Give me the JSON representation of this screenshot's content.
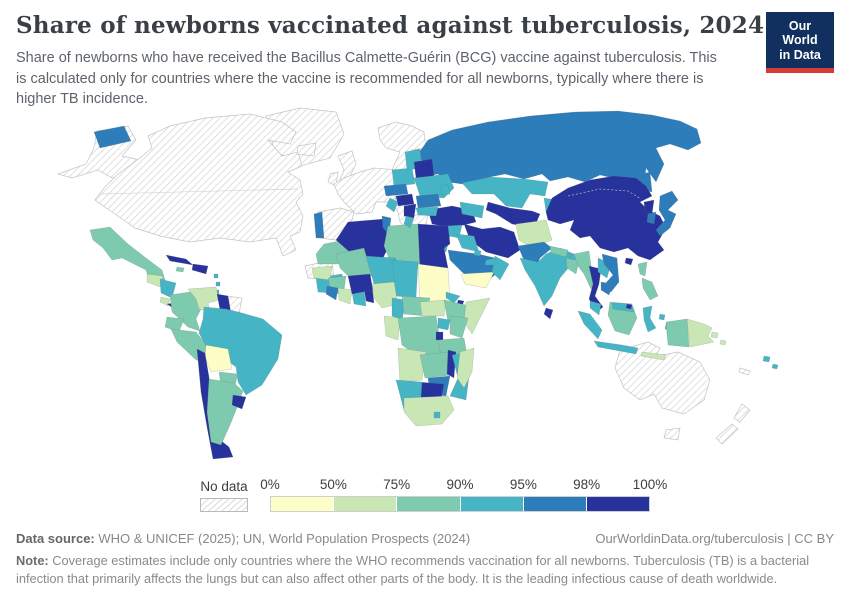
{
  "header": {
    "title": "Share of newborns vaccinated against tuberculosis, 2024",
    "subtitle": "Share of newborns who have received the Bacillus Calmette-Guérin (BCG) vaccine against tuberculosis. This is calculated only for countries where the vaccine is recommended for all newborns, typically where there is higher TB incidence.",
    "logo": {
      "line1": "Our World",
      "line2": "in Data",
      "bg_color": "#12305f",
      "accent_color": "#d63b36"
    }
  },
  "legend": {
    "no_data_label": "No data",
    "tick_labels": [
      "0%",
      "50%",
      "75%",
      "90%",
      "95%",
      "98%",
      "100%"
    ],
    "bin_ranges": [
      "0-50%",
      "50-75%",
      "75-90%",
      "90-95%",
      "95-98%",
      "98-100%"
    ],
    "bin_colors": [
      "#fdfdc7",
      "#c9e7b4",
      "#7dcaae",
      "#45b4c5",
      "#2d7dbb",
      "#28329c"
    ]
  },
  "map": {
    "ocean_color": "#ffffff",
    "no_data_pattern": "diagonal-hatch",
    "regions": [
      {
        "id": "greenland",
        "bin": "no-data"
      },
      {
        "id": "alaska",
        "bin": "no-data"
      },
      {
        "id": "canada-usa",
        "bin": "no-data"
      },
      {
        "id": "iceland",
        "bin": "no-data"
      },
      {
        "id": "uk-ireland",
        "bin": "no-data"
      },
      {
        "id": "scandinavia",
        "bin": "no-data"
      },
      {
        "id": "denmark",
        "bin": "no-data"
      },
      {
        "id": "western-europe",
        "bin": "no-data"
      },
      {
        "id": "spain",
        "bin": "no-data"
      },
      {
        "id": "italy",
        "bin": "no-data"
      },
      {
        "id": "greece",
        "bin": "no-data"
      },
      {
        "id": "western-sahara",
        "bin": "no-data"
      },
      {
        "id": "suriname-fr-guiana",
        "bin": "no-data"
      },
      {
        "id": "australia",
        "bin": "no-data"
      },
      {
        "id": "tasmania",
        "bin": "no-data"
      },
      {
        "id": "new-zealand",
        "bin": "no-data"
      },
      {
        "id": "new-caledonia",
        "bin": "no-data"
      },
      {
        "id": "russia",
        "bin": 4
      },
      {
        "id": "chukotka-russia",
        "bin": 4
      },
      {
        "id": "sakhalin",
        "bin": 4
      },
      {
        "id": "kazakhstan",
        "bin": 3
      },
      {
        "id": "uzbekistan-turkmenistan",
        "bin": 5
      },
      {
        "id": "kyrgyzstan-tajikistan",
        "bin": 3
      },
      {
        "id": "china-mongolia",
        "bin": 5
      },
      {
        "id": "north-korea",
        "bin": 5
      },
      {
        "id": "south-korea",
        "bin": 4
      },
      {
        "id": "japan",
        "bin": 4
      },
      {
        "id": "hainan",
        "bin": 5
      },
      {
        "id": "iran",
        "bin": 5
      },
      {
        "id": "afghanistan",
        "bin": 1
      },
      {
        "id": "pakistan",
        "bin": 4
      },
      {
        "id": "india",
        "bin": 3
      },
      {
        "id": "nepal",
        "bin": 2
      },
      {
        "id": "bhutan",
        "bin": 3
      },
      {
        "id": "bangladesh",
        "bin": 2
      },
      {
        "id": "sri-lanka",
        "bin": 5
      },
      {
        "id": "myanmar",
        "bin": 2
      },
      {
        "id": "thailand",
        "bin": 5
      },
      {
        "id": "laos",
        "bin": 3
      },
      {
        "id": "vietnam",
        "bin": 4
      },
      {
        "id": "cambodia",
        "bin": 4
      },
      {
        "id": "malaysia",
        "bin": 3
      },
      {
        "id": "indonesia-sumatra",
        "bin": 3
      },
      {
        "id": "indonesia-java",
        "bin": 3
      },
      {
        "id": "borneo",
        "bin": 2
      },
      {
        "id": "malaysia-east",
        "bin": 3
      },
      {
        "id": "brunei",
        "bin": 5
      },
      {
        "id": "indonesia-sulawesi",
        "bin": 3
      },
      {
        "id": "indonesia-maluku",
        "bin": 3
      },
      {
        "id": "lesser-sunda-islands",
        "bin": 1
      },
      {
        "id": "philippines",
        "bin": 2
      },
      {
        "id": "papua-indonesia",
        "bin": 2
      },
      {
        "id": "papua-new-guinea",
        "bin": 1
      },
      {
        "id": "solomon-islands",
        "bin": 1
      },
      {
        "id": "fiji",
        "bin": 3
      },
      {
        "id": "turkey",
        "bin": 5
      },
      {
        "id": "caucasus",
        "bin": 3
      },
      {
        "id": "syria",
        "bin": 3
      },
      {
        "id": "israel-jordan",
        "bin": 3
      },
      {
        "id": "iraq",
        "bin": 3
      },
      {
        "id": "saudi-arabia",
        "bin": 4
      },
      {
        "id": "yemen",
        "bin": 0
      },
      {
        "id": "oman",
        "bin": 3
      },
      {
        "id": "uae-qatar",
        "bin": 3
      },
      {
        "id": "kuwait",
        "bin": 3
      },
      {
        "id": "morocco",
        "bin": 2
      },
      {
        "id": "algeria",
        "bin": 5
      },
      {
        "id": "tunisia",
        "bin": 4
      },
      {
        "id": "libya",
        "bin": 2
      },
      {
        "id": "egypt",
        "bin": 5
      },
      {
        "id": "mauritania",
        "bin": 3
      },
      {
        "id": "mali",
        "bin": 2
      },
      {
        "id": "senegal-gambia",
        "bin": 1
      },
      {
        "id": "guinea",
        "bin": 2
      },
      {
        "id": "sierra-leone-liberia",
        "bin": 4
      },
      {
        "id": "cote-divoire",
        "bin": 1
      },
      {
        "id": "ghana-togo",
        "bin": 3
      },
      {
        "id": "benin",
        "bin": 5
      },
      {
        "id": "burkina-faso",
        "bin": 5
      },
      {
        "id": "niger",
        "bin": 3
      },
      {
        "id": "chad",
        "bin": 3
      },
      {
        "id": "sudan",
        "bin": 0
      },
      {
        "id": "nigeria",
        "bin": 1
      },
      {
        "id": "cameroon",
        "bin": 3
      },
      {
        "id": "central-african-republic",
        "bin": 2
      },
      {
        "id": "south-sudan",
        "bin": 1
      },
      {
        "id": "eritrea",
        "bin": 3
      },
      {
        "id": "djibouti",
        "bin": 5
      },
      {
        "id": "ethiopia",
        "bin": 2
      },
      {
        "id": "somalia",
        "bin": 1
      },
      {
        "id": "gabon-congo",
        "bin": 1
      },
      {
        "id": "dr-congo",
        "bin": 2
      },
      {
        "id": "uganda",
        "bin": 3
      },
      {
        "id": "kenya",
        "bin": 2
      },
      {
        "id": "rwanda-burundi",
        "bin": 5
      },
      {
        "id": "tanzania",
        "bin": 2
      },
      {
        "id": "angola",
        "bin": 1
      },
      {
        "id": "zambia",
        "bin": 2
      },
      {
        "id": "malawi",
        "bin": 5
      },
      {
        "id": "mozambique",
        "bin": 3
      },
      {
        "id": "zimbabwe",
        "bin": 4
      },
      {
        "id": "botswana",
        "bin": 5
      },
      {
        "id": "namibia",
        "bin": 3
      },
      {
        "id": "south-africa",
        "bin": 1
      },
      {
        "id": "lesotho",
        "bin": 3
      },
      {
        "id": "madagascar",
        "bin": 1
      },
      {
        "id": "mexico",
        "bin": 2
      },
      {
        "id": "guatemala-belize",
        "bin": 1
      },
      {
        "id": "honduras-nicaragua",
        "bin": 3
      },
      {
        "id": "costa-rica",
        "bin": 1
      },
      {
        "id": "panama",
        "bin": 5
      },
      {
        "id": "cuba",
        "bin": 5
      },
      {
        "id": "jamaica",
        "bin": 2
      },
      {
        "id": "hispaniola",
        "bin": 5
      },
      {
        "id": "lesser-antilles",
        "bin": 3
      },
      {
        "id": "colombia",
        "bin": 2
      },
      {
        "id": "venezuela",
        "bin": 1
      },
      {
        "id": "guyana",
        "bin": 5
      },
      {
        "id": "ecuador",
        "bin": 2
      },
      {
        "id": "peru",
        "bin": 2
      },
      {
        "id": "brazil",
        "bin": 3
      },
      {
        "id": "bolivia",
        "bin": 0
      },
      {
        "id": "paraguay",
        "bin": 2
      },
      {
        "id": "chile",
        "bin": 5
      },
      {
        "id": "argentina",
        "bin": 2
      },
      {
        "id": "uruguay",
        "bin": 5
      },
      {
        "id": "portugal",
        "bin": 4
      },
      {
        "id": "poland",
        "bin": 3
      },
      {
        "id": "baltic-states",
        "bin": 3
      },
      {
        "id": "belarus",
        "bin": 5
      },
      {
        "id": "ukraine",
        "bin": 3
      },
      {
        "id": "czechia-slovakia",
        "bin": 4
      },
      {
        "id": "hungary",
        "bin": 5
      },
      {
        "id": "croatia-bosnia",
        "bin": 3
      },
      {
        "id": "serbia",
        "bin": 5
      },
      {
        "id": "romania",
        "bin": 4
      },
      {
        "id": "bulgaria",
        "bin": 3
      },
      {
        "id": "albania-north-macedonia",
        "bin": 3
      },
      {
        "id": "moldova",
        "bin": 3
      }
    ]
  },
  "footer": {
    "data_source_label": "Data source:",
    "data_source": "WHO & UNICEF (2025); UN, World Population Prospects (2024)",
    "link": "OurWorldinData.org/tuberculosis | CC BY",
    "note_label": "Note:",
    "note": "Coverage estimates include only countries where the WHO recommends vaccination for all newborns. Tuberculosis (TB) is a bacterial infection that primarily affects the lungs but can also affect other parts of the body. It is the leading infectious cause of death worldwide."
  }
}
